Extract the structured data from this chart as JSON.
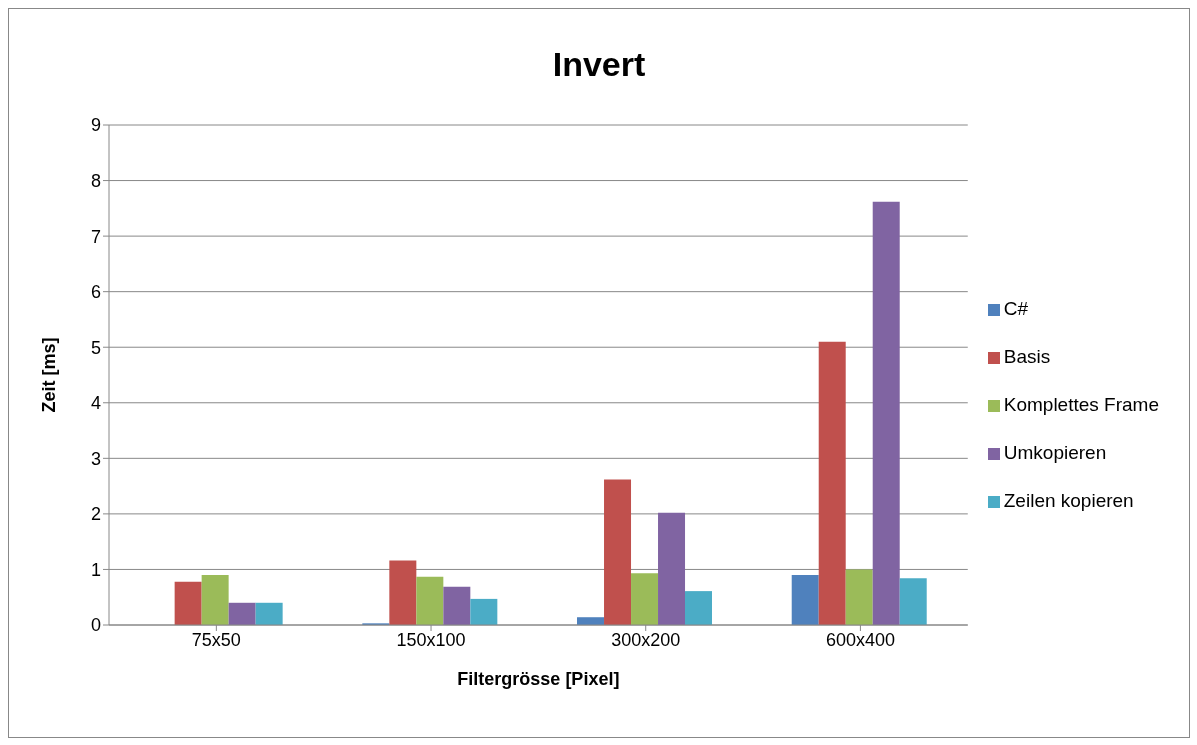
{
  "chart_data": {
    "type": "bar",
    "title": "Invert",
    "xlabel": "Filtergrösse [Pixel]",
    "ylabel": "Zeit [ms]",
    "categories": [
      "75x50",
      "150x100",
      "300x200",
      "600x400"
    ],
    "series": [
      {
        "name": "C#",
        "color": "#4f81bd",
        "values": [
          0,
          0.03,
          0.14,
          0.9
        ]
      },
      {
        "name": "Basis",
        "color": "#c0504d",
        "values": [
          0.78,
          1.16,
          2.62,
          5.1
        ]
      },
      {
        "name": "Komplettes Frame",
        "color": "#9bbb59",
        "values": [
          0.9,
          0.87,
          0.93,
          1.0
        ]
      },
      {
        "name": "Umkopieren",
        "color": "#8064a2",
        "values": [
          0.4,
          0.69,
          2.02,
          7.62
        ]
      },
      {
        "name": "Zeilen kopieren",
        "color": "#4bacc6",
        "values": [
          0.4,
          0.47,
          0.61,
          0.84
        ]
      }
    ],
    "ylim": [
      0,
      9
    ],
    "yticks": [
      0,
      1,
      2,
      3,
      4,
      5,
      6,
      7,
      8,
      9
    ],
    "grid": "y",
    "legend": "right"
  }
}
